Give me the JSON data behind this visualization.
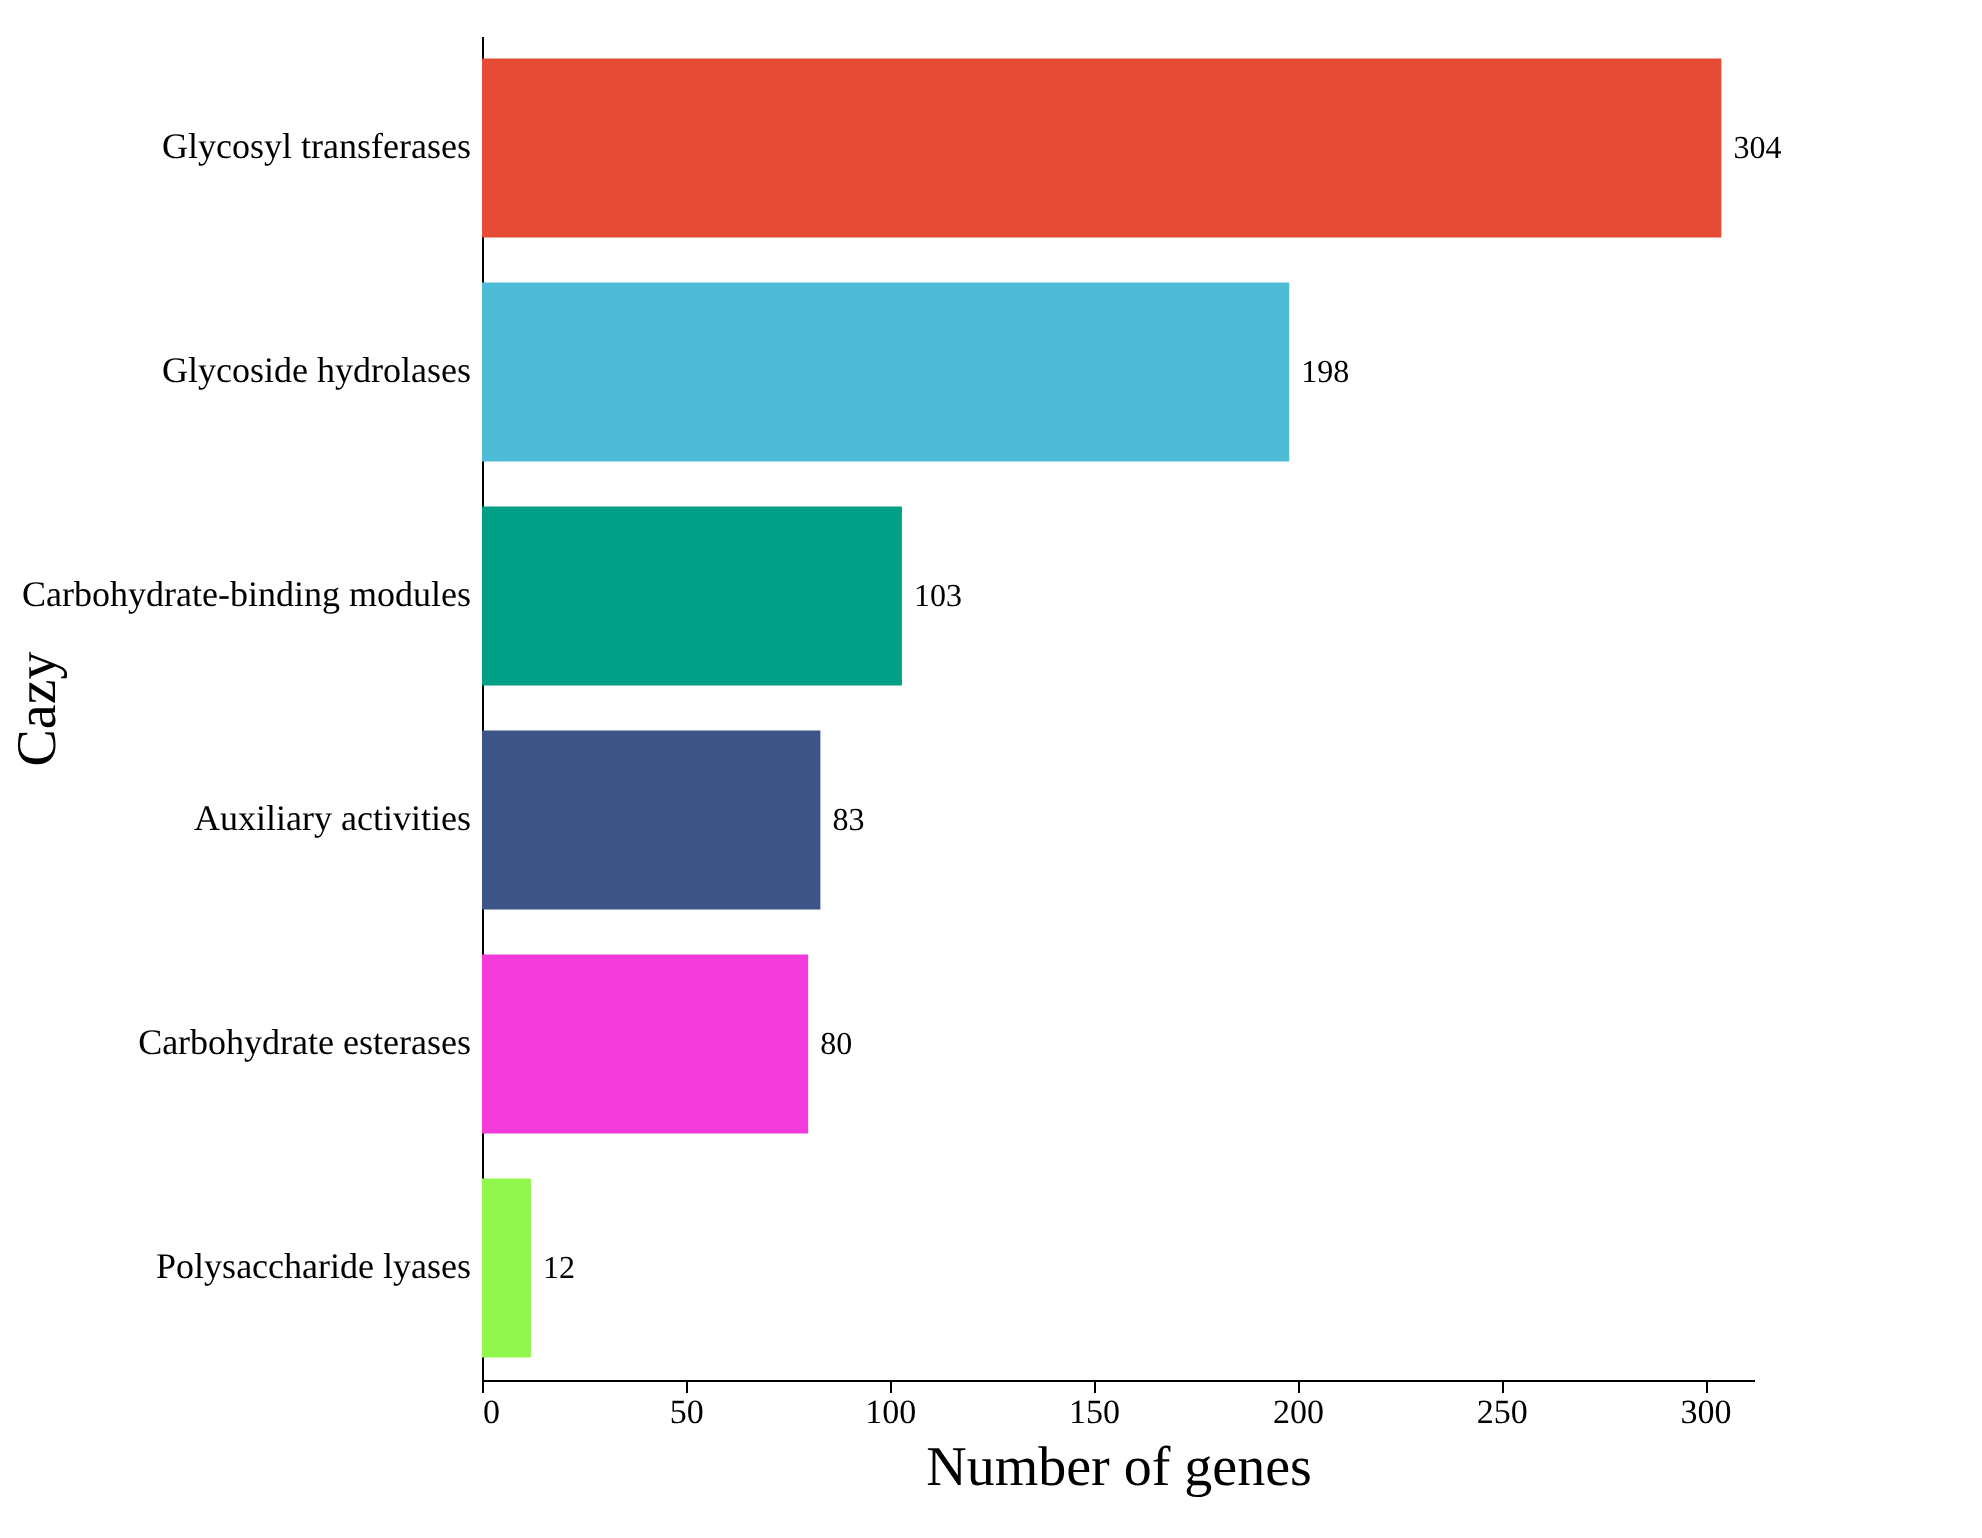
{
  "chart_data": {
    "type": "bar",
    "orientation": "horizontal",
    "xlabel": "Number of genes",
    "ylabel": "Cazy",
    "categories": [
      "Glycosyl transferases",
      "Glycoside hydrolases",
      "Carbohydrate-binding modules",
      "Auxiliary activities",
      "Carbohydrate esterases",
      "Polysaccharide lyases"
    ],
    "values": [
      304,
      198,
      103,
      83,
      80,
      12
    ],
    "colors": [
      "#e64b35",
      "#4dbbd5",
      "#00a087",
      "#3c5488",
      "#f33bdc",
      "#91f74d"
    ],
    "xlim": [
      0,
      312
    ],
    "xticks": [
      0,
      50,
      100,
      150,
      200,
      250,
      300
    ],
    "data_labels": true,
    "grid": false,
    "legend": false
  }
}
